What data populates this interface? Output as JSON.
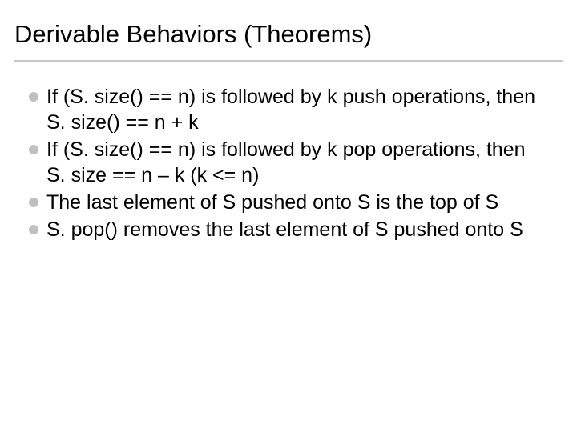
{
  "slide": {
    "title": "Derivable Behaviors (Theorems)",
    "title_fontsize": 31,
    "title_color": "#000000",
    "underline_color": "#c8c8c8",
    "background_color": "#ffffff",
    "bullet_dot_color": "#c0c0c0",
    "body_fontsize": 25,
    "body_color": "#000000",
    "bullets": [
      "If (S. size() == n) is followed by k push operations, then S. size() == n + k",
      "If (S. size() == n) is followed by k pop operations, then S. size == n – k (k <= n)",
      "The last element of S pushed onto S is the top of S",
      "S. pop() removes the last element of S pushed onto S"
    ]
  }
}
